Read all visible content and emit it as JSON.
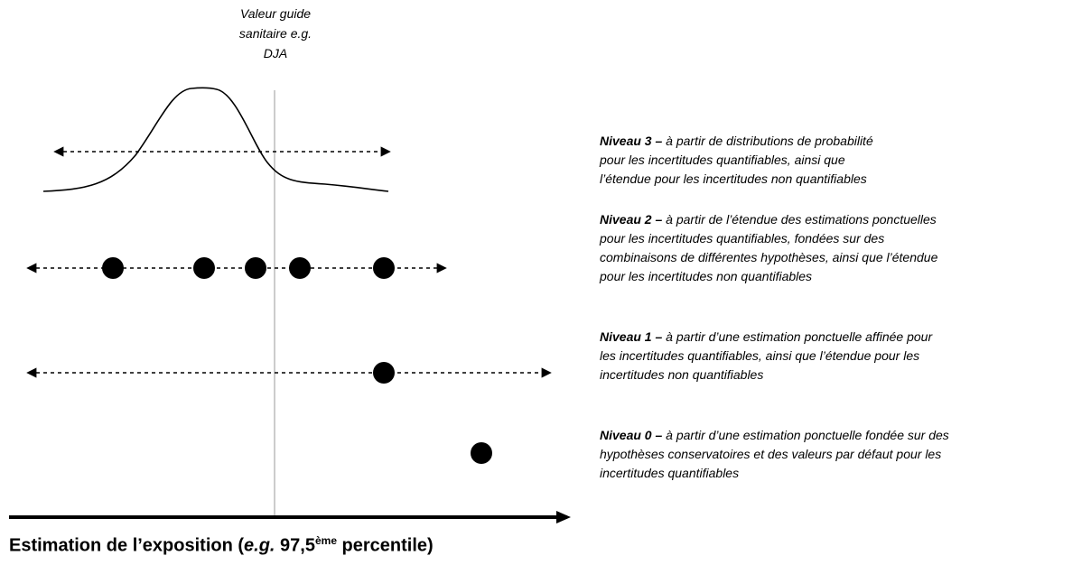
{
  "guide_label": {
    "line1": "Valeur guide",
    "line2": "sanitaire e.g.",
    "line3": "DJA"
  },
  "levels": [
    {
      "title": "Niveau 3 –",
      "lines": [
        "à partir de distributions de probabilité",
        "pour les incertitudes quantifiables, ainsi que",
        "l’étendue pour les incertitudes non quantifiables"
      ]
    },
    {
      "title": "Niveau 2 –",
      "lines": [
        "à partir de l’étendue des estimations ponctuelles",
        "pour les incertitudes quantifiables, fondées sur des",
        "combinaisons de différentes hypothèses, ainsi que l’étendue",
        "pour les incertitudes non quantifiables"
      ]
    },
    {
      "title": "Niveau 1 –",
      "lines": [
        "à partir d’une estimation ponctuelle affinée pour",
        "les incertitudes quantifiables, ainsi que l’étendue pour les",
        "incertitudes non quantifiables"
      ]
    },
    {
      "title": "Niveau 0 –",
      "lines": [
        "à partir d’une estimation ponctuelle fondée sur des",
        "hypothèses conservatoires et des valeurs par défaut pour les",
        "incertitudes quantifiables"
      ]
    }
  ],
  "axis_title": {
    "prefix": "Estimation de l’exposition (",
    "eg": "e.g.",
    "value": " 97,5",
    "sup": "ème",
    "suffix": " percentile)"
  },
  "colors": {
    "ink": "#000000",
    "guide_line": "#9a9a9a"
  }
}
